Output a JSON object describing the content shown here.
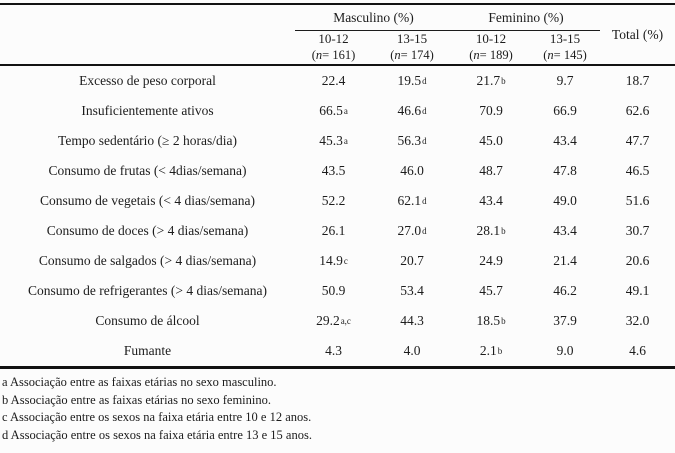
{
  "page": {
    "background": "#fcfcfc",
    "text_color": "#1c1c1c",
    "rule_color": "#121212"
  },
  "table": {
    "groups": [
      {
        "label": "Masculino (%)"
      },
      {
        "label": "Feminino (%)"
      }
    ],
    "total_label": "Total (%)",
    "age_cols": [
      {
        "age": "10-12",
        "n_open": "(",
        "n_sym": "n",
        "n_rest": " = 161)"
      },
      {
        "age": "13-15",
        "n_open": "(",
        "n_sym": "n",
        "n_rest": " = 174)"
      },
      {
        "age": "10-12",
        "n_open": "(",
        "n_sym": "n",
        "n_rest": " = 189)"
      },
      {
        "age": "13-15",
        "n_open": "(",
        "n_sym": "n",
        "n_rest": " = 145)"
      }
    ],
    "rows": [
      {
        "label": "Excesso de peso corporal",
        "cells": [
          {
            "v": "22.4"
          },
          {
            "v": "19.5",
            "sup": "d"
          },
          {
            "v": "21.7",
            "sup": "b"
          },
          {
            "v": "9.7"
          },
          {
            "v": "18.7"
          }
        ]
      },
      {
        "label": "Insuficientemente ativos",
        "cells": [
          {
            "v": "66.5",
            "sup": "a"
          },
          {
            "v": "46.6",
            "sup": "d"
          },
          {
            "v": "70.9"
          },
          {
            "v": "66.9"
          },
          {
            "v": "62.6"
          }
        ]
      },
      {
        "label": "Tempo sedentário (≥ 2 horas/dia)",
        "cells": [
          {
            "v": "45.3",
            "sup": "a"
          },
          {
            "v": "56.3",
            "sup": "d"
          },
          {
            "v": "45.0"
          },
          {
            "v": "43.4"
          },
          {
            "v": "47.7"
          }
        ]
      },
      {
        "label": "Consumo de frutas (< 4dias/semana)",
        "cells": [
          {
            "v": "43.5"
          },
          {
            "v": "46.0"
          },
          {
            "v": "48.7"
          },
          {
            "v": "47.8"
          },
          {
            "v": "46.5"
          }
        ]
      },
      {
        "label": "Consumo de vegetais (< 4 dias/semana)",
        "cells": [
          {
            "v": "52.2"
          },
          {
            "v": "62.1",
            "sup": "d"
          },
          {
            "v": "43.4"
          },
          {
            "v": "49.0"
          },
          {
            "v": "51.6"
          }
        ]
      },
      {
        "label": "Consumo de doces (> 4 dias/semana)",
        "cells": [
          {
            "v": "26.1"
          },
          {
            "v": "27.0",
            "sup": "d"
          },
          {
            "v": "28.1",
            "sup": "b"
          },
          {
            "v": "43.4"
          },
          {
            "v": "30.7"
          }
        ]
      },
      {
        "label": "Consumo de salgados (> 4 dias/semana)",
        "cells": [
          {
            "v": "14.9",
            "sup": "c"
          },
          {
            "v": "20.7"
          },
          {
            "v": "24.9"
          },
          {
            "v": "21.4"
          },
          {
            "v": "20.6"
          }
        ]
      },
      {
        "label": "Consumo de refrigerantes (> 4 dias/semana)",
        "cells": [
          {
            "v": "50.9"
          },
          {
            "v": "53.4"
          },
          {
            "v": "45.7"
          },
          {
            "v": "46.2"
          },
          {
            "v": "49.1"
          }
        ]
      },
      {
        "label": "Consumo de álcool",
        "cells": [
          {
            "v": "29.2",
            "sup": "a,c"
          },
          {
            "v": "44.3"
          },
          {
            "v": "18.5",
            "sup": "b"
          },
          {
            "v": "37.9"
          },
          {
            "v": "32.0"
          }
        ]
      },
      {
        "label": "Fumante",
        "cells": [
          {
            "v": "4.3"
          },
          {
            "v": "4.0"
          },
          {
            "v": "2.1",
            "sup": "b"
          },
          {
            "v": "9.0"
          },
          {
            "v": "4.6"
          }
        ]
      }
    ],
    "footnotes": [
      "a Associação entre as faixas etárias no sexo masculino.",
      "b Associação entre as faixas etárias no sexo feminino.",
      "c Associação entre os sexos na faixa etária entre 10 e 12 anos.",
      "d Associação entre os sexos na faixa etária entre 13 e 15 anos."
    ]
  }
}
